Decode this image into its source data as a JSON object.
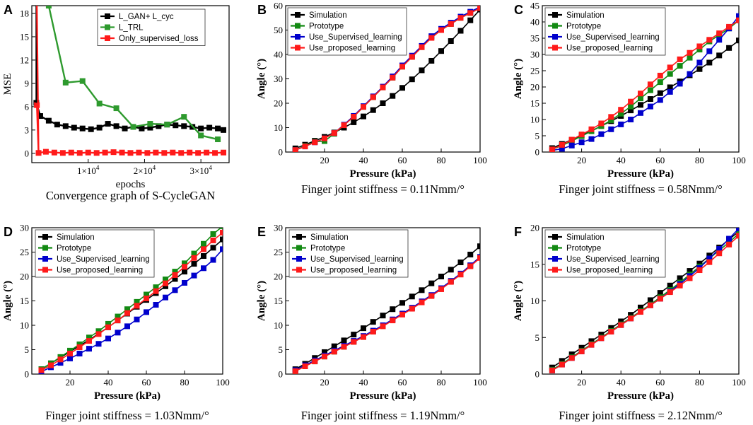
{
  "colors": {
    "simulation": "#000000",
    "prototype": "#138a13",
    "supervised": "#0000cc",
    "proposed": "#ff1a1a",
    "gan_cyc": "#000000",
    "trl": "#2e9a2e",
    "only_supervised": "#ff1a1a"
  },
  "chart_data": [
    {
      "panel": "A",
      "type": "line",
      "title": "Convergence graph of S-CycleGAN",
      "xlabel": "epochs",
      "ylabel": "MSE",
      "xlim": [
        0,
        35000
      ],
      "ylim": [
        -1.2,
        19
      ],
      "xticks": [
        10000,
        20000,
        30000
      ],
      "xtick_labels": [
        "1×10^4",
        "2×10^4",
        "3×10^4"
      ],
      "yticks": [
        0,
        3,
        6,
        9,
        12,
        15,
        18
      ],
      "series": [
        {
          "name": "L_GAN+ L_cyc",
          "color": "#000000",
          "x": [
            800,
            1500,
            3000,
            4500,
            6000,
            7500,
            9000,
            10500,
            12000,
            13500,
            15000,
            16500,
            18000,
            19500,
            21000,
            22500,
            24000,
            25500,
            27000,
            28500,
            30000,
            31500,
            33000,
            34000
          ],
          "y": [
            6.5,
            4.8,
            4.2,
            3.7,
            3.5,
            3.3,
            3.2,
            3.1,
            3.3,
            3.8,
            3.5,
            3.2,
            3.4,
            3.2,
            3.3,
            3.5,
            3.7,
            3.6,
            3.5,
            3.4,
            3.2,
            3.3,
            3.2,
            3.0
          ]
        },
        {
          "name": "L_TRL",
          "color": "#2e9a2e",
          "x": [
            3000,
            6000,
            9000,
            12000,
            15000,
            18000,
            21000,
            24000,
            27000,
            30000,
            33000
          ],
          "y": [
            19.0,
            9.1,
            9.3,
            6.4,
            5.8,
            3.4,
            3.8,
            3.7,
            4.7,
            2.3,
            1.8
          ]
        },
        {
          "name": "Only_supervised_loss",
          "color": "#ff1a1a",
          "x": [
            900,
            1200,
            2500,
            4000,
            5500,
            7000,
            8500,
            10000,
            11500,
            13000,
            14500,
            16000,
            17500,
            19000,
            20500,
            22000,
            23500,
            25000,
            26500,
            28000,
            29500,
            31000,
            32500,
            34000
          ],
          "y": [
            6.2,
            0.05,
            0.2,
            0.1,
            0.05,
            0.1,
            0.05,
            0.1,
            0.05,
            0.1,
            0.15,
            0.1,
            0.05,
            0.1,
            0.05,
            0.1,
            0.05,
            0.1,
            0.05,
            0.1,
            0.05,
            0.1,
            0.05,
            0.1
          ]
        }
      ]
    },
    {
      "panel": "B",
      "type": "line",
      "title": "Finger joint stiffness = 0.11Nmm/°",
      "xlabel": "Pressure (kPa)",
      "ylabel": "Angle (°)",
      "xlim": [
        0,
        100
      ],
      "ylim": [
        0,
        60
      ],
      "xticks": [
        20,
        40,
        60,
        80,
        100
      ],
      "yticks": [
        0,
        10,
        20,
        30,
        40,
        50,
        60
      ],
      "x": [
        5,
        10,
        15,
        20,
        25,
        30,
        35,
        40,
        45,
        50,
        55,
        60,
        65,
        70,
        75,
        80,
        85,
        90,
        95,
        100
      ],
      "series": [
        {
          "name": "Simulation",
          "color": "#000000",
          "y": [
            1.5,
            3.0,
            4.6,
            6.2,
            8.0,
            10.0,
            12.2,
            14.6,
            17.2,
            20.0,
            23.0,
            26.3,
            29.8,
            33.5,
            37.4,
            41.4,
            45.5,
            49.7,
            54.0,
            58.4
          ]
        },
        {
          "name": "Prototype",
          "color": "#138a13",
          "y": [
            0.8,
            2.5,
            4.2,
            4.5,
            7.5,
            11.0,
            14.5,
            18.5,
            22.5,
            26.5,
            30.5,
            35.0,
            39.0,
            43.0,
            47.0,
            50.0,
            52.5,
            55.0,
            57.0,
            59.0
          ]
        },
        {
          "name": "Use_Supervised_learning",
          "color": "#0000cc",
          "y": [
            0.8,
            2.3,
            4.0,
            5.6,
            7.8,
            11.2,
            14.8,
            18.8,
            22.8,
            26.8,
            31.0,
            35.5,
            39.5,
            43.5,
            47.5,
            50.5,
            53.0,
            55.5,
            57.5,
            59.5
          ]
        },
        {
          "name": "Use_proposed_learning",
          "color": "#ff1a1a",
          "y": [
            0.8,
            2.3,
            4.0,
            5.6,
            7.8,
            11.0,
            14.5,
            18.5,
            22.5,
            26.5,
            30.5,
            35.0,
            39.0,
            43.0,
            46.8,
            50.0,
            52.5,
            55.0,
            57.0,
            59.0
          ]
        }
      ]
    },
    {
      "panel": "C",
      "type": "line",
      "title": "Finger joint stiffness = 0.58Nmm/°",
      "xlabel": "Pressure (kPa)",
      "ylabel": "Angle (°)",
      "xlim": [
        0,
        100
      ],
      "ylim": [
        0,
        45
      ],
      "xticks": [
        20,
        40,
        60,
        80,
        100
      ],
      "yticks": [
        0,
        5,
        10,
        15,
        20,
        25,
        30,
        35,
        40,
        45
      ],
      "x": [
        5,
        10,
        15,
        20,
        25,
        30,
        35,
        40,
        45,
        50,
        55,
        60,
        65,
        70,
        75,
        80,
        85,
        90,
        95,
        100
      ],
      "series": [
        {
          "name": "Simulation",
          "color": "#000000",
          "y": [
            1.2,
            2.5,
            3.8,
            5.1,
            6.5,
            8.0,
            9.5,
            11.1,
            12.8,
            14.5,
            16.3,
            18.1,
            19.9,
            21.7,
            23.6,
            25.5,
            27.5,
            29.7,
            32.0,
            34.3
          ]
        },
        {
          "name": "Prototype",
          "color": "#138a13",
          "y": [
            0.8,
            2.0,
            3.4,
            4.9,
            6.4,
            8.0,
            9.8,
            11.8,
            14.0,
            16.5,
            19.0,
            21.5,
            24.0,
            26.5,
            29.0,
            31.5,
            34.0,
            36.0,
            38.0,
            40.5
          ]
        },
        {
          "name": "Use_Supervised_learning",
          "color": "#0000cc",
          "y": [
            0.5,
            1.0,
            2.0,
            3.0,
            4.0,
            5.5,
            7.0,
            8.5,
            10.0,
            12.0,
            14.0,
            16.0,
            18.5,
            21.0,
            24.0,
            27.5,
            31.0,
            34.5,
            38.0,
            41.8
          ]
        },
        {
          "name": "Use_proposed_learning",
          "color": "#ff1a1a",
          "y": [
            0.8,
            2.2,
            3.8,
            5.4,
            7.0,
            8.8,
            10.8,
            13.0,
            15.5,
            18.0,
            20.8,
            23.5,
            26.0,
            28.5,
            30.5,
            32.5,
            34.5,
            36.5,
            38.5,
            40.5
          ]
        }
      ]
    },
    {
      "panel": "D",
      "type": "line",
      "title": "Finger joint stiffness = 1.03Nmm/°",
      "xlabel": "Pressure (kPa)",
      "ylabel": "Angle (°)",
      "xlim": [
        0,
        100
      ],
      "ylim": [
        0,
        30
      ],
      "xticks": [
        20,
        40,
        60,
        80,
        100
      ],
      "yticks": [
        0,
        5,
        10,
        15,
        20,
        25,
        30
      ],
      "x": [
        5,
        10,
        15,
        20,
        25,
        30,
        35,
        40,
        45,
        50,
        55,
        60,
        65,
        70,
        75,
        80,
        85,
        90,
        95,
        100
      ],
      "series": [
        {
          "name": "Simulation",
          "color": "#000000",
          "y": [
            1.0,
            2.2,
            3.4,
            4.6,
            5.8,
            7.0,
            8.3,
            9.6,
            11.0,
            12.4,
            13.8,
            15.2,
            16.6,
            18.0,
            19.5,
            21.0,
            22.6,
            24.2,
            25.9,
            27.6
          ]
        },
        {
          "name": "Prototype",
          "color": "#138a13",
          "y": [
            1.0,
            2.2,
            3.5,
            4.8,
            6.1,
            7.5,
            8.8,
            10.3,
            11.8,
            13.3,
            14.8,
            16.3,
            17.8,
            19.4,
            21.0,
            22.7,
            24.7,
            26.7,
            28.7,
            30.3
          ]
        },
        {
          "name": "Use_Supervised_learning",
          "color": "#0000cc",
          "y": [
            0.5,
            1.4,
            2.3,
            3.2,
            4.2,
            5.2,
            6.2,
            7.3,
            8.5,
            9.8,
            11.2,
            12.7,
            14.2,
            15.7,
            17.2,
            18.7,
            20.2,
            21.7,
            23.4,
            25.6
          ]
        },
        {
          "name": "Use_proposed_learning",
          "color": "#ff1a1a",
          "y": [
            0.8,
            1.8,
            3.0,
            4.2,
            5.5,
            6.8,
            8.2,
            9.6,
            11.0,
            12.5,
            14.0,
            15.5,
            17.0,
            18.6,
            20.3,
            22.0,
            23.8,
            25.6,
            27.4,
            29.0
          ]
        }
      ]
    },
    {
      "panel": "E",
      "type": "line",
      "title": "Finger joint stiffness = 1.19Nmm/°",
      "xlabel": "Pressure (kPa)",
      "ylabel": "Angle (°)",
      "xlim": [
        0,
        100
      ],
      "ylim": [
        0,
        30
      ],
      "xticks": [
        20,
        40,
        60,
        80,
        100
      ],
      "yticks": [
        0,
        5,
        10,
        15,
        20,
        25,
        30
      ],
      "x": [
        5,
        10,
        15,
        20,
        25,
        30,
        35,
        40,
        45,
        50,
        55,
        60,
        65,
        70,
        75,
        80,
        85,
        90,
        95,
        100
      ],
      "series": [
        {
          "name": "Simulation",
          "color": "#000000",
          "y": [
            1.0,
            2.1,
            3.3,
            4.5,
            5.7,
            6.9,
            8.1,
            9.4,
            10.7,
            12.0,
            13.3,
            14.6,
            15.9,
            17.2,
            18.6,
            20.0,
            21.4,
            22.9,
            24.5,
            26.2
          ]
        },
        {
          "name": "Prototype",
          "color": "#138a13",
          "y": [
            0.6,
            1.6,
            2.6,
            3.6,
            4.6,
            5.6,
            6.6,
            7.6,
            8.7,
            9.9,
            11.1,
            12.3,
            13.5,
            14.8,
            16.1,
            17.5,
            19.0,
            20.5,
            22.2,
            24.0
          ]
        },
        {
          "name": "Use_Supervised_learning",
          "color": "#0000cc",
          "y": [
            0.8,
            1.8,
            2.8,
            3.8,
            4.8,
            5.8,
            6.8,
            7.8,
            8.9,
            10.0,
            11.2,
            12.4,
            13.6,
            14.9,
            16.2,
            17.6,
            19.1,
            20.6,
            22.3,
            24.0
          ]
        },
        {
          "name": "Use_proposed_learning",
          "color": "#ff1a1a",
          "y": [
            0.6,
            1.6,
            2.6,
            3.6,
            4.6,
            5.6,
            6.6,
            7.6,
            8.7,
            9.8,
            11.0,
            12.2,
            13.4,
            14.7,
            16.0,
            17.4,
            18.9,
            20.4,
            22.1,
            23.8
          ]
        }
      ]
    },
    {
      "panel": "F",
      "type": "line",
      "title": "Finger joint stiffness = 2.12Nmm/°",
      "xlabel": "Pressure (kPa)",
      "ylabel": "Angle (°)",
      "xlim": [
        0,
        100
      ],
      "ylim": [
        0,
        20
      ],
      "xticks": [
        20,
        40,
        60,
        80,
        100
      ],
      "yticks": [
        0,
        5,
        10,
        15,
        20
      ],
      "x": [
        5,
        10,
        15,
        20,
        25,
        30,
        35,
        40,
        45,
        50,
        55,
        60,
        65,
        70,
        75,
        80,
        85,
        90,
        95,
        100
      ],
      "series": [
        {
          "name": "Simulation",
          "color": "#000000",
          "y": [
            0.9,
            1.8,
            2.7,
            3.6,
            4.5,
            5.4,
            6.3,
            7.2,
            8.1,
            9.1,
            10.1,
            11.1,
            12.1,
            13.1,
            14.1,
            15.1,
            16.2,
            17.3,
            18.4,
            19.5
          ]
        },
        {
          "name": "Prototype",
          "color": "#138a13",
          "y": [
            0.6,
            1.4,
            2.3,
            3.2,
            4.1,
            5.0,
            5.9,
            6.8,
            7.7,
            8.6,
            9.5,
            10.5,
            11.5,
            12.5,
            13.6,
            14.7,
            15.8,
            16.9,
            18.0,
            19.2
          ]
        },
        {
          "name": "Use_Supervised_learning",
          "color": "#0000cc",
          "y": [
            0.5,
            1.3,
            2.2,
            3.1,
            4.0,
            4.9,
            5.8,
            6.7,
            7.6,
            8.5,
            9.4,
            10.3,
            11.3,
            12.3,
            13.4,
            14.5,
            15.8,
            17.1,
            18.5,
            19.9
          ]
        },
        {
          "name": "Use_proposed_learning",
          "color": "#ff1a1a",
          "y": [
            0.5,
            1.3,
            2.2,
            3.1,
            4.0,
            4.9,
            5.8,
            6.7,
            7.6,
            8.5,
            9.4,
            10.3,
            11.2,
            12.1,
            13.1,
            14.2,
            15.3,
            16.5,
            17.7,
            18.9
          ]
        }
      ]
    }
  ]
}
